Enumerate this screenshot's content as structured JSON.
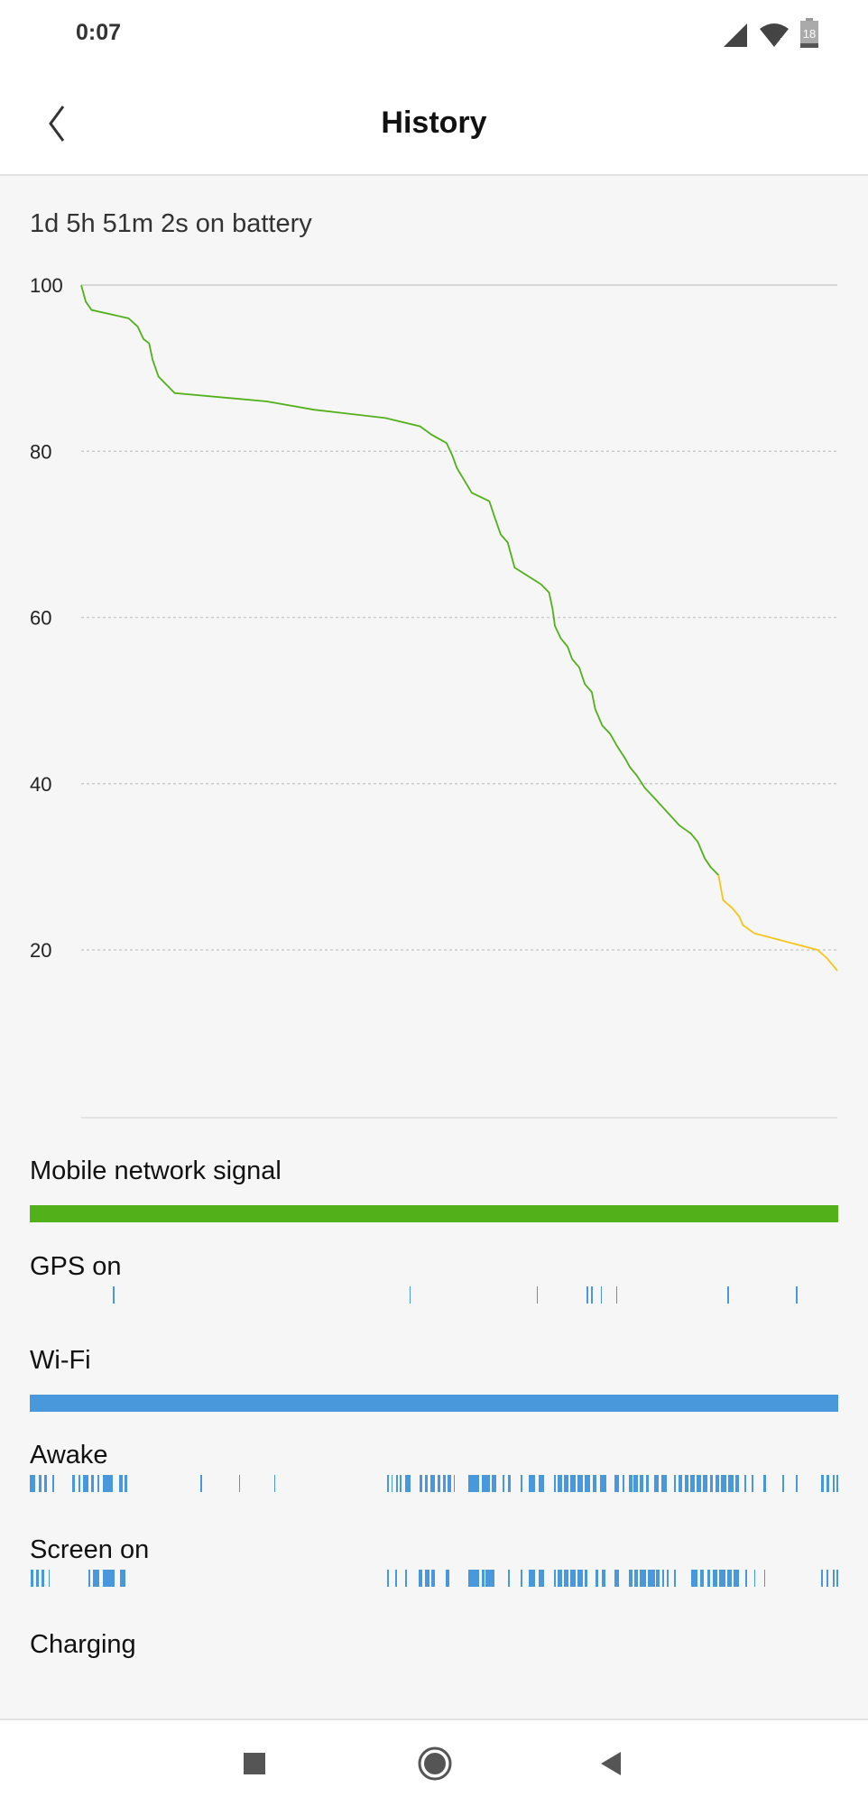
{
  "status_bar": {
    "time": "0:07",
    "battery_level": "18",
    "icons": [
      "cell-signal-icon",
      "wifi-icon",
      "battery-icon"
    ]
  },
  "header": {
    "title": "History",
    "back_icon": "chevron-left-icon"
  },
  "summary": "1d 5h 51m 2s on battery",
  "colors": {
    "green": "#52b01a",
    "yellow": "#f5c518",
    "blue": "#4a98dc"
  },
  "chart_data": {
    "type": "line",
    "title": "",
    "xlabel": "",
    "ylabel": "",
    "xlim_hours_on_battery": [
      0,
      29.85
    ],
    "ylim": [
      0,
      100
    ],
    "yticks": [
      "100",
      "80",
      "60",
      "40",
      "20"
    ],
    "grid": "horizontal dotted",
    "series": [
      {
        "color": "#52b01a",
        "points": [
          [
            0,
            100
          ],
          [
            0.18,
            98
          ],
          [
            0.41,
            97
          ],
          [
            1.87,
            96
          ],
          [
            2.23,
            95
          ],
          [
            2.46,
            93.5
          ],
          [
            2.68,
            93
          ],
          [
            2.82,
            91
          ],
          [
            3.05,
            89
          ],
          [
            3.69,
            87
          ],
          [
            7.33,
            86
          ],
          [
            9.19,
            85
          ],
          [
            12.01,
            84
          ],
          [
            13.38,
            83
          ],
          [
            13.83,
            82
          ],
          [
            14.42,
            81
          ],
          [
            14.65,
            79.5
          ],
          [
            14.83,
            78
          ],
          [
            15.42,
            75
          ],
          [
            16.11,
            74
          ],
          [
            16.33,
            72
          ],
          [
            16.56,
            70
          ],
          [
            16.84,
            69
          ],
          [
            17.02,
            67
          ],
          [
            17.11,
            66
          ],
          [
            18.15,
            64
          ],
          [
            18.47,
            63
          ],
          [
            18.61,
            61
          ],
          [
            18.7,
            59
          ],
          [
            18.93,
            57.5
          ],
          [
            19.2,
            56.5
          ],
          [
            19.38,
            55
          ],
          [
            19.66,
            54
          ],
          [
            19.88,
            52
          ],
          [
            20.16,
            51
          ],
          [
            20.29,
            49
          ],
          [
            20.57,
            47
          ],
          [
            20.88,
            46
          ],
          [
            21.16,
            44.5
          ],
          [
            21.48,
            43
          ],
          [
            21.66,
            42
          ],
          [
            21.93,
            41
          ],
          [
            22.25,
            39.5
          ],
          [
            22.71,
            38
          ],
          [
            23.16,
            36.5
          ],
          [
            23.61,
            35
          ],
          [
            24.07,
            34
          ],
          [
            24.34,
            33
          ],
          [
            24.62,
            31
          ],
          [
            24.84,
            30
          ],
          [
            25.16,
            29
          ]
        ]
      },
      {
        "color": "#f5c518",
        "points": [
          [
            25.16,
            29
          ],
          [
            25.34,
            26
          ],
          [
            25.71,
            25
          ],
          [
            25.98,
            24
          ],
          [
            26.12,
            23
          ],
          [
            26.57,
            22
          ],
          [
            29.07,
            20
          ],
          [
            29.44,
            19
          ],
          [
            29.85,
            17.5
          ]
        ]
      }
    ]
  },
  "rows": [
    {
      "label": "Mobile network signal",
      "type": "bar",
      "color": "#52b01a",
      "segments_pct": [
        [
          0,
          100
        ]
      ]
    },
    {
      "label": "GPS on",
      "type": "ticks",
      "color": "#4a98dc",
      "segments_pct": [
        [
          10.3,
          10.45
        ],
        [
          47.0,
          47.15
        ],
        [
          62.7,
          62.85
        ],
        [
          68.9,
          69.1
        ],
        [
          69.4,
          69.6
        ],
        [
          70.6,
          70.75
        ],
        [
          72.5,
          72.65
        ],
        [
          86.3,
          86.45
        ],
        [
          94.8,
          94.95
        ]
      ]
    },
    {
      "label": "Wi-Fi",
      "type": "bar",
      "color": "#4a98dc",
      "segments_pct": [
        [
          0,
          100
        ]
      ]
    },
    {
      "label": "Awake",
      "type": "ticks",
      "color": "#4a98dc",
      "segments_pct": [
        [
          0,
          0.7
        ],
        [
          1.1,
          1.4
        ],
        [
          1.8,
          2.1
        ],
        [
          2.8,
          3.0
        ],
        [
          5.3,
          5.6
        ],
        [
          6.0,
          6.3
        ],
        [
          6.6,
          7.3
        ],
        [
          7.6,
          7.9
        ],
        [
          8.4,
          8.6
        ],
        [
          9.0,
          10.3
        ],
        [
          11.0,
          11.5
        ],
        [
          11.7,
          12.0
        ],
        [
          21.1,
          21.3
        ],
        [
          25.9,
          26.05
        ],
        [
          30.2,
          30.35
        ],
        [
          44.2,
          44.4
        ],
        [
          44.7,
          44.9
        ],
        [
          45.3,
          45.5
        ],
        [
          45.8,
          46.0
        ],
        [
          46.4,
          47.1
        ],
        [
          48.2,
          48.5
        ],
        [
          48.9,
          49.2
        ],
        [
          49.5,
          50.1
        ],
        [
          50.4,
          50.8
        ],
        [
          51.1,
          51.4
        ],
        [
          51.7,
          52.1
        ],
        [
          52.5,
          52.6
        ],
        [
          54.2,
          55.6
        ],
        [
          55.9,
          56.9
        ],
        [
          57.1,
          57.7
        ],
        [
          58.5,
          58.7
        ],
        [
          59.2,
          59.5
        ],
        [
          60.7,
          60.9
        ],
        [
          61.7,
          62.5
        ],
        [
          62.9,
          63.6
        ],
        [
          64.8,
          65.1
        ],
        [
          65.3,
          65.9
        ],
        [
          66.1,
          66.6
        ],
        [
          66.8,
          67.5
        ],
        [
          67.8,
          68.4
        ],
        [
          68.6,
          69.3
        ],
        [
          69.6,
          70.1
        ],
        [
          70.5,
          71.3
        ],
        [
          72.3,
          72.9
        ],
        [
          73.3,
          73.5
        ],
        [
          74.1,
          74.5
        ],
        [
          74.7,
          75.2
        ],
        [
          75.5,
          75.9
        ],
        [
          76.2,
          76.6
        ],
        [
          77.2,
          77.8
        ],
        [
          78.1,
          78.8
        ],
        [
          79.7,
          79.9
        ],
        [
          80.3,
          80.7
        ],
        [
          81.0,
          81.5
        ],
        [
          81.7,
          82.3
        ],
        [
          82.5,
          83.0
        ],
        [
          83.3,
          83.8
        ],
        [
          84.1,
          84.5
        ],
        [
          84.8,
          85.3
        ],
        [
          85.5,
          86.2
        ],
        [
          86.4,
          87.1
        ],
        [
          87.3,
          87.7
        ],
        [
          88.4,
          88.6
        ],
        [
          89.3,
          89.5
        ],
        [
          90.7,
          91.1
        ],
        [
          93.1,
          93.25
        ],
        [
          94.8,
          94.95
        ],
        [
          97.9,
          98.2
        ],
        [
          98.6,
          98.9
        ],
        [
          99.3,
          99.5
        ],
        [
          99.8,
          100
        ]
      ]
    },
    {
      "label": "Screen on",
      "type": "ticks",
      "color": "#4a98dc",
      "segments_pct": [
        [
          0.1,
          0.4
        ],
        [
          0.8,
          1.1
        ],
        [
          1.5,
          1.8
        ],
        [
          2.3,
          2.5
        ],
        [
          7.3,
          7.5
        ],
        [
          7.8,
          8.6
        ],
        [
          9.0,
          10.5
        ],
        [
          11.2,
          11.8
        ],
        [
          44.2,
          44.4
        ],
        [
          45.2,
          45.4
        ],
        [
          46.4,
          46.6
        ],
        [
          48.1,
          48.6
        ],
        [
          48.9,
          49.4
        ],
        [
          49.7,
          50.1
        ],
        [
          51.4,
          51.9
        ],
        [
          54.2,
          55.6
        ],
        [
          55.9,
          56.2
        ],
        [
          56.4,
          57.5
        ],
        [
          59.2,
          59.4
        ],
        [
          60.7,
          60.9
        ],
        [
          61.7,
          62.5
        ],
        [
          62.9,
          63.6
        ],
        [
          64.8,
          65.1
        ],
        [
          65.3,
          65.9
        ],
        [
          66.1,
          66.6
        ],
        [
          66.8,
          67.5
        ],
        [
          67.8,
          68.4
        ],
        [
          68.6,
          69.0
        ],
        [
          70.0,
          70.3
        ],
        [
          70.8,
          71.2
        ],
        [
          72.3,
          72.9
        ],
        [
          74.1,
          74.5
        ],
        [
          74.8,
          75.2
        ],
        [
          75.5,
          76.2
        ],
        [
          76.4,
          77.3
        ],
        [
          77.5,
          77.9
        ],
        [
          78.2,
          78.5
        ],
        [
          78.8,
          79.0
        ],
        [
          79.7,
          79.9
        ],
        [
          81.8,
          82.6
        ],
        [
          82.9,
          83.4
        ],
        [
          83.8,
          84.1
        ],
        [
          84.5,
          85.1
        ],
        [
          85.3,
          86.0
        ],
        [
          86.3,
          86.8
        ],
        [
          87.1,
          87.7
        ],
        [
          88.5,
          88.7
        ],
        [
          89.6,
          89.75
        ],
        [
          90.8,
          91.0
        ],
        [
          97.9,
          98.1
        ],
        [
          98.6,
          98.8
        ],
        [
          99.3,
          99.5
        ],
        [
          99.8,
          100
        ]
      ]
    },
    {
      "label": "Charging",
      "type": "ticks",
      "color": "#4a98dc",
      "segments_pct": []
    }
  ],
  "nav_bar": {
    "icons": [
      "recents-square-icon",
      "home-circle-icon",
      "back-triangle-icon"
    ]
  }
}
